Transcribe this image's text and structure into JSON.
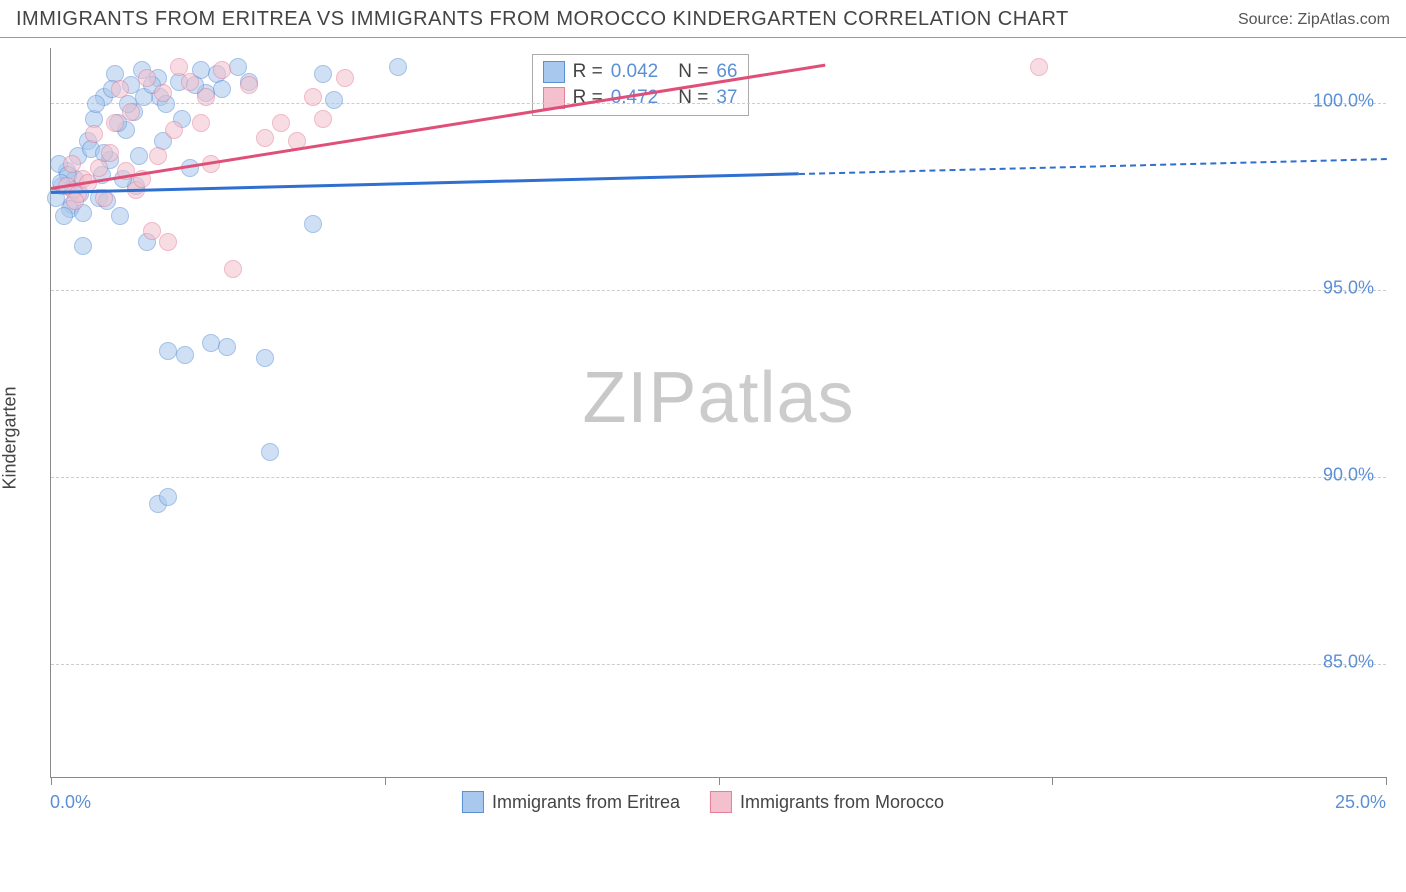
{
  "header": {
    "title": "IMMIGRANTS FROM ERITREA VS IMMIGRANTS FROM MOROCCO KINDERGARTEN CORRELATION CHART",
    "source": "Source: ZipAtlas.com"
  },
  "chart": {
    "type": "scatter",
    "ylabel": "Kindergarten",
    "xlim": [
      0,
      25
    ],
    "ylim": [
      82,
      101.5
    ],
    "xticks": [
      0,
      6.25,
      12.5,
      18.75,
      25
    ],
    "yticks": [
      85,
      90,
      95,
      100
    ],
    "ytick_labels": [
      "85.0%",
      "90.0%",
      "95.0%",
      "100.0%"
    ],
    "xlabel_min": "0.0%",
    "xlabel_max": "25.0%",
    "grid_color": "#cccccc",
    "axis_color": "#888888",
    "background_color": "#ffffff",
    "tick_label_color": "#5b8fd6",
    "tick_label_fontsize": 18,
    "axis_label_fontsize": 18,
    "marker_size": 18,
    "marker_opacity": 0.55,
    "watermark": "ZIPatlas"
  },
  "series": {
    "eritrea": {
      "label": "Immigrants from Eritrea",
      "color_fill": "#a8c8ed",
      "color_stroke": "#5b8fd6",
      "trend_color": "#2f6fd0",
      "r": "0.042",
      "n": "66",
      "trend": {
        "x1": 0,
        "y1": 97.6,
        "x2_solid": 14,
        "y2_solid": 98.1,
        "x2_dash": 25,
        "y2_dash": 98.5
      },
      "points": [
        [
          0.2,
          97.8
        ],
        [
          0.3,
          98.2
        ],
        [
          0.4,
          97.3
        ],
        [
          0.35,
          97.2
        ],
        [
          0.5,
          98.6
        ],
        [
          0.6,
          97.1
        ],
        [
          0.7,
          99.0
        ],
        [
          0.45,
          98.0
        ],
        [
          0.8,
          99.6
        ],
        [
          0.9,
          97.5
        ],
        [
          1.0,
          100.2
        ],
        [
          1.1,
          98.5
        ],
        [
          1.2,
          100.8
        ],
        [
          1.3,
          97.0
        ],
        [
          1.4,
          99.3
        ],
        [
          1.5,
          100.5
        ],
        [
          1.55,
          99.8
        ],
        [
          1.7,
          100.9
        ],
        [
          1.6,
          97.8
        ],
        [
          1.8,
          96.3
        ],
        [
          2.0,
          100.7
        ],
        [
          2.05,
          100.2
        ],
        [
          2.1,
          99.0
        ],
        [
          2.2,
          93.4
        ],
        [
          2.4,
          100.6
        ],
        [
          2.45,
          99.6
        ],
        [
          2.0,
          89.3
        ],
        [
          2.2,
          89.5
        ],
        [
          2.5,
          93.3
        ],
        [
          2.6,
          98.3
        ],
        [
          2.8,
          100.9
        ],
        [
          2.9,
          100.3
        ],
        [
          3.0,
          93.6
        ],
        [
          3.1,
          100.8
        ],
        [
          3.3,
          93.5
        ],
        [
          3.5,
          101.0
        ],
        [
          3.7,
          100.6
        ],
        [
          4.0,
          93.2
        ],
        [
          4.1,
          90.7
        ],
        [
          4.9,
          96.8
        ],
        [
          5.1,
          100.8
        ],
        [
          5.3,
          100.1
        ],
        [
          6.5,
          101.0
        ],
        [
          0.6,
          96.2
        ],
        [
          0.25,
          97.0
        ],
        [
          0.55,
          97.6
        ],
        [
          0.95,
          98.1
        ],
        [
          1.25,
          99.5
        ],
        [
          0.15,
          98.4
        ],
        [
          0.75,
          98.8
        ],
        [
          1.05,
          97.4
        ],
        [
          1.35,
          98.0
        ],
        [
          1.65,
          98.6
        ],
        [
          0.42,
          97.7
        ],
        [
          0.85,
          100.0
        ],
        [
          1.15,
          100.4
        ],
        [
          1.45,
          100.0
        ],
        [
          1.75,
          100.2
        ],
        [
          0.1,
          97.5
        ],
        [
          0.32,
          98.1
        ],
        [
          1.0,
          98.7
        ],
        [
          1.9,
          100.5
        ],
        [
          2.15,
          100.0
        ],
        [
          2.7,
          100.5
        ],
        [
          3.2,
          100.4
        ],
        [
          0.18,
          97.9
        ]
      ]
    },
    "morocco": {
      "label": "Immigrants from Morocco",
      "color_fill": "#f4c0cd",
      "color_stroke": "#e57f9a",
      "trend_color": "#e04f78",
      "r": "0.472",
      "n": "37",
      "trend": {
        "x1": 0,
        "y1": 97.7,
        "x2_solid": 14.5,
        "y2_solid": 101.0,
        "x2_dash": 14.5,
        "y2_dash": 101.0
      },
      "points": [
        [
          0.3,
          97.8
        ],
        [
          0.4,
          98.4
        ],
        [
          0.5,
          97.6
        ],
        [
          0.6,
          98.0
        ],
        [
          0.8,
          99.2
        ],
        [
          0.9,
          98.3
        ],
        [
          1.0,
          97.5
        ],
        [
          1.2,
          99.5
        ],
        [
          1.3,
          100.4
        ],
        [
          1.4,
          98.2
        ],
        [
          1.5,
          99.8
        ],
        [
          1.6,
          97.7
        ],
        [
          1.8,
          100.7
        ],
        [
          1.9,
          96.6
        ],
        [
          2.0,
          98.6
        ],
        [
          2.1,
          100.3
        ],
        [
          2.2,
          96.3
        ],
        [
          2.4,
          101.0
        ],
        [
          2.6,
          100.6
        ],
        [
          2.8,
          99.5
        ],
        [
          3.0,
          98.4
        ],
        [
          3.2,
          100.9
        ],
        [
          3.4,
          95.6
        ],
        [
          3.7,
          100.5
        ],
        [
          4.0,
          99.1
        ],
        [
          4.3,
          99.5
        ],
        [
          4.6,
          99.0
        ],
        [
          4.9,
          100.2
        ],
        [
          5.1,
          99.6
        ],
        [
          5.5,
          100.7
        ],
        [
          0.7,
          97.9
        ],
        [
          1.1,
          98.7
        ],
        [
          1.7,
          98.0
        ],
        [
          2.3,
          99.3
        ],
        [
          2.9,
          100.2
        ],
        [
          18.5,
          101.0
        ],
        [
          0.45,
          97.4
        ]
      ]
    }
  },
  "rbox": {
    "r_label": "R =",
    "n_label": "N ="
  },
  "legend": {
    "items": [
      {
        "key": "eritrea"
      },
      {
        "key": "morocco"
      }
    ]
  }
}
